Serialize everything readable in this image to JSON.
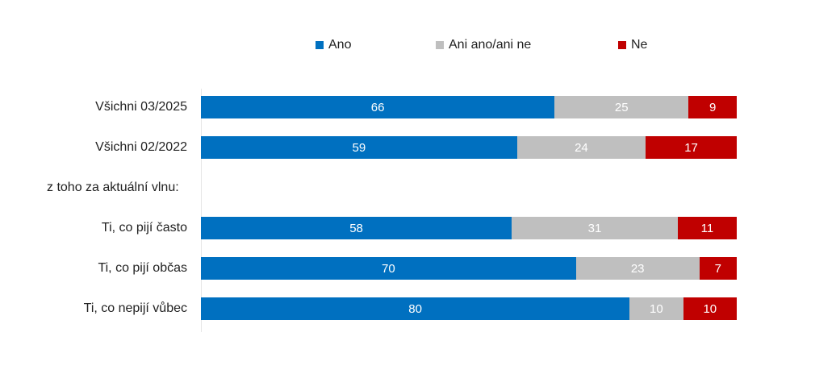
{
  "chart_data": {
    "type": "bar",
    "orientation": "horizontal",
    "stacked": true,
    "xlim": [
      0,
      100
    ],
    "legend": {
      "placement": "top",
      "entries": [
        "Ano",
        "Ani ano/ani ne",
        "Ne"
      ]
    },
    "colors": [
      "#0070C0",
      "#BFBFBF",
      "#C00000"
    ],
    "group_label": "z toho za aktuální vlnu:",
    "categories": [
      "Všichni 03/2025",
      "Všichni 02/2022",
      "Ti, co pijí často",
      "Ti, co pijí občas",
      "Ti, co nepijí vůbec"
    ],
    "series": [
      {
        "name": "Ano",
        "values": [
          66,
          59,
          58,
          70,
          80
        ]
      },
      {
        "name": "Ani ano/ani ne",
        "values": [
          25,
          24,
          31,
          23,
          10
        ]
      },
      {
        "name": "Ne",
        "values": [
          9,
          17,
          11,
          7,
          10
        ]
      }
    ]
  }
}
